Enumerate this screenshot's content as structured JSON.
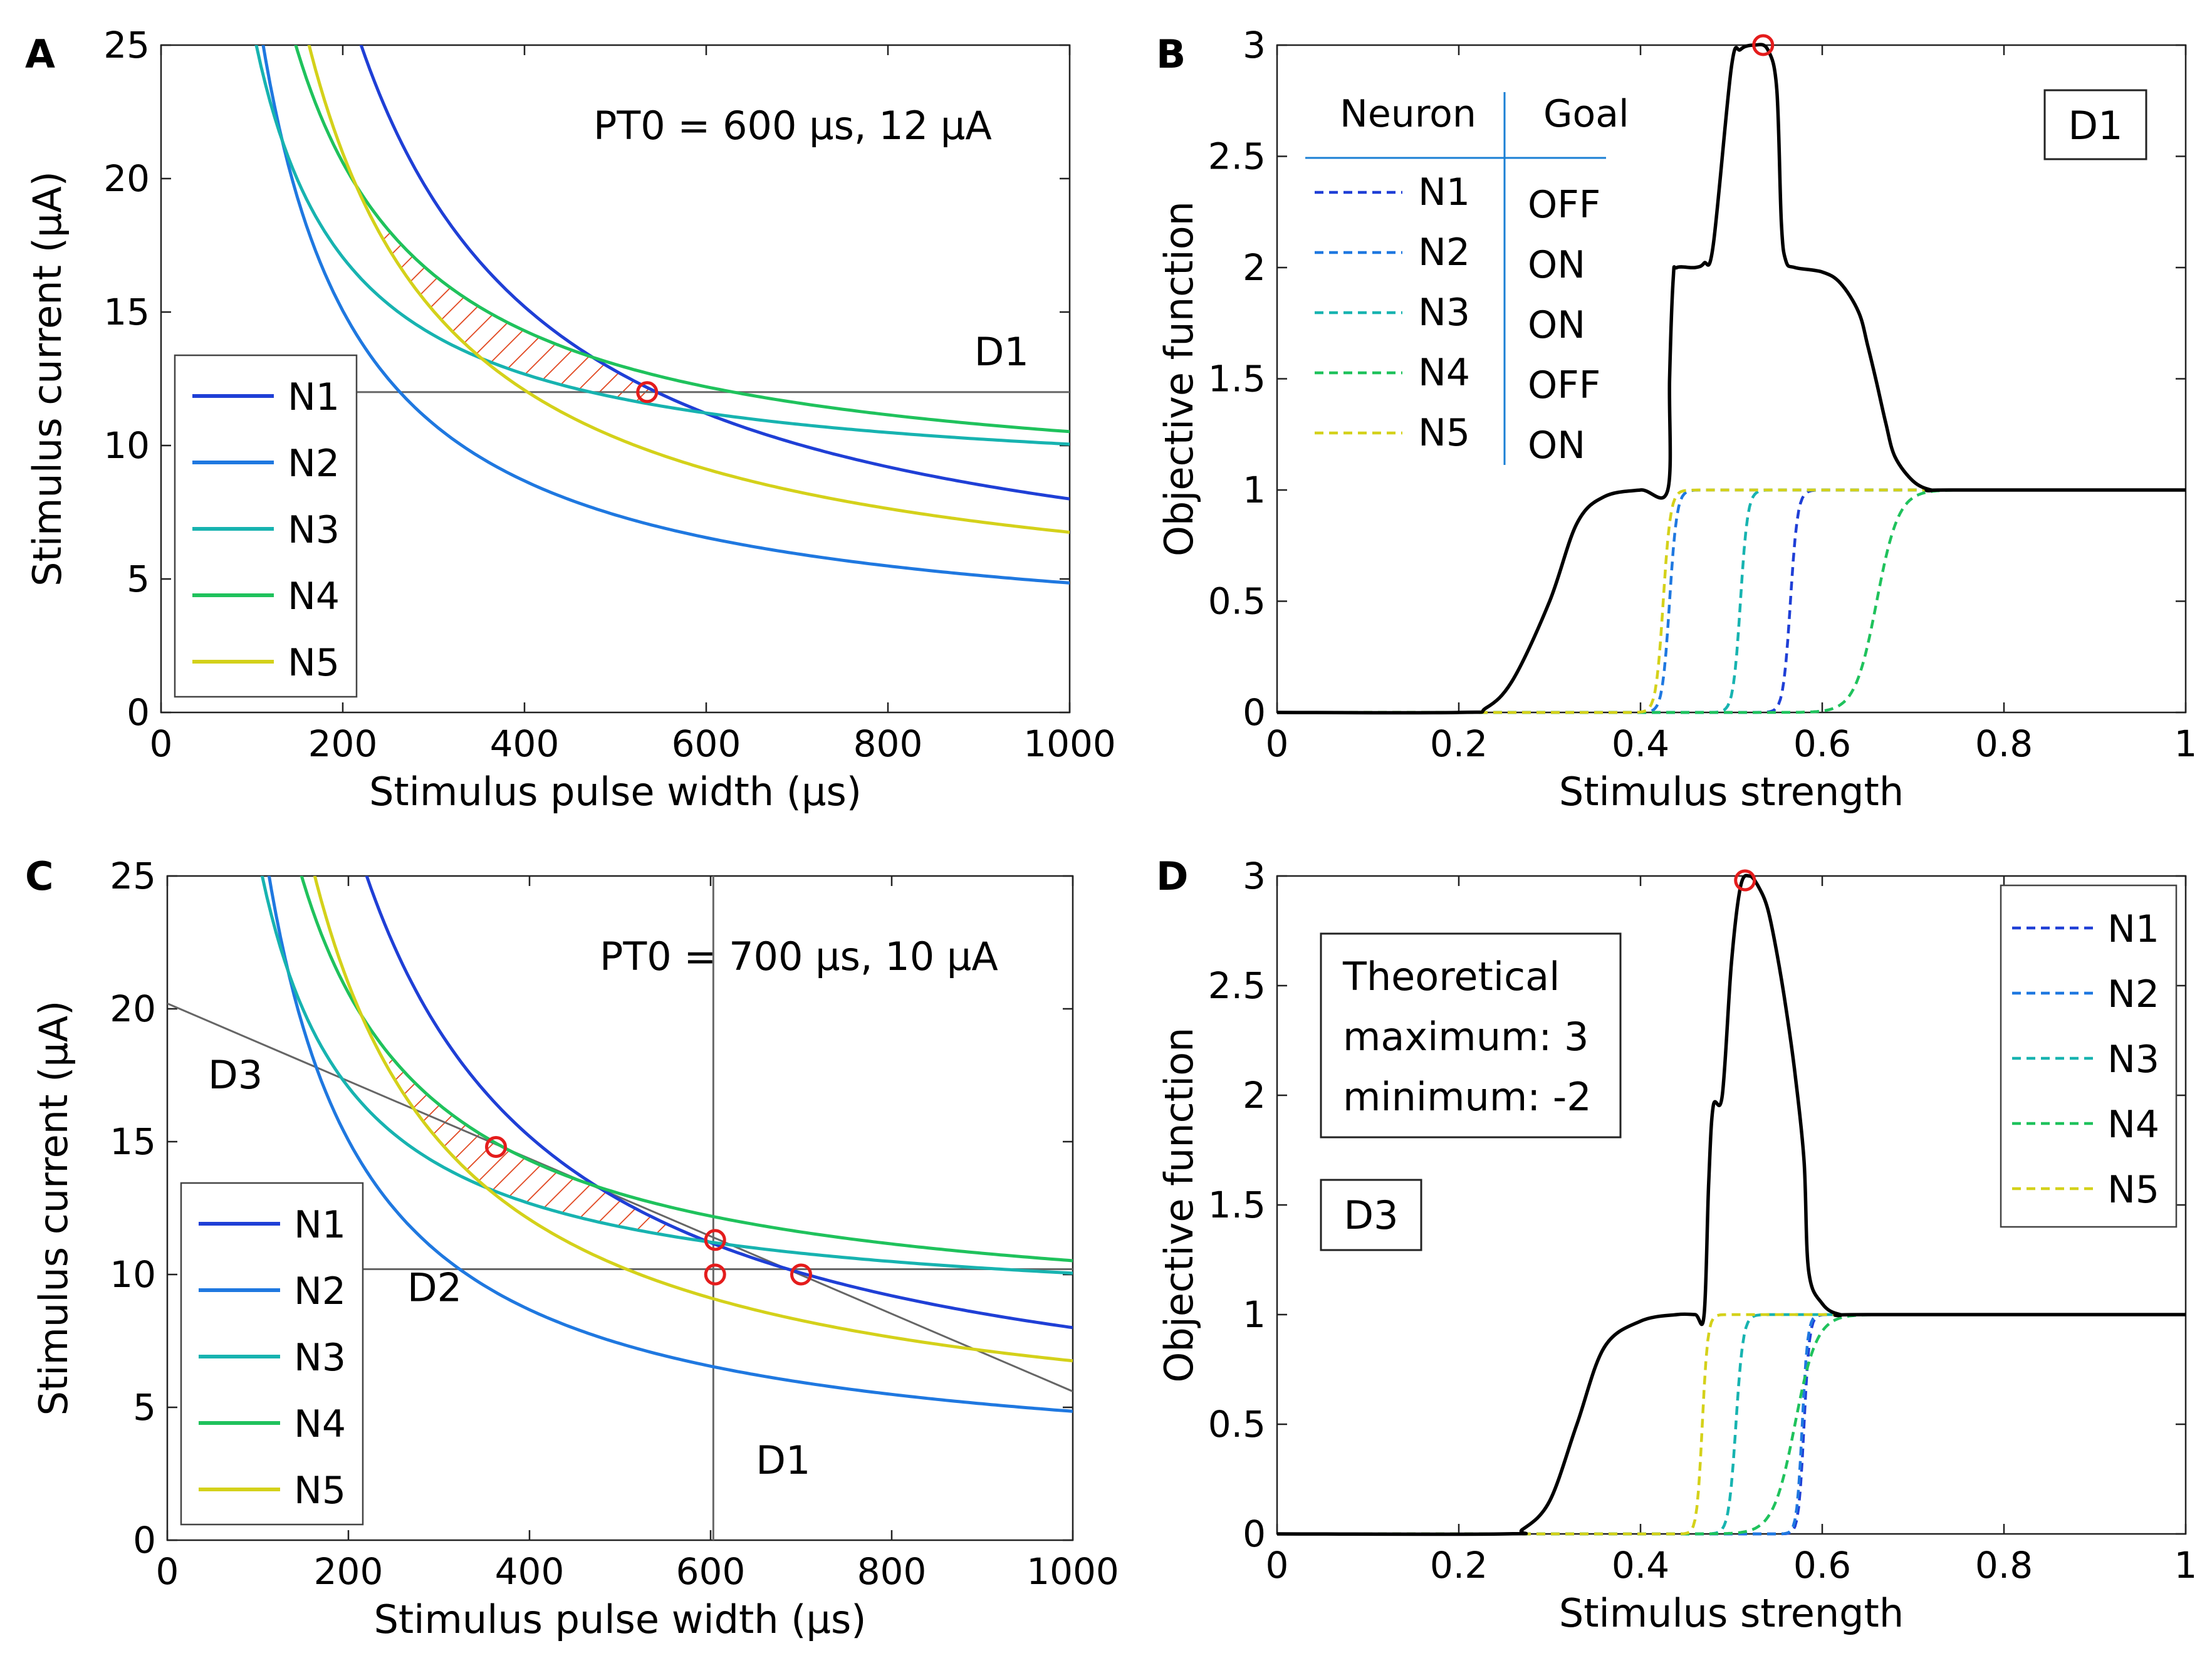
{
  "figure_labels": {
    "A": "A",
    "B": "B",
    "C": "C",
    "D": "D"
  },
  "chart_data": [
    {
      "id": "A",
      "type": "line",
      "xlabel": "Stimulus pulse width (µs)",
      "ylabel": "Stimulus current (µA)",
      "xlim": [
        0,
        1000
      ],
      "ylim": [
        0,
        25
      ],
      "xticks": [
        0,
        200,
        400,
        600,
        800,
        1000
      ],
      "yticks": [
        0,
        5,
        10,
        15,
        20,
        25
      ],
      "annotation": "PT0 = 600 µs, 12 µA",
      "legend_position": "bottom-left",
      "series": [
        {
          "name": "N1",
          "color": "#1f3fd6",
          "Q": 4800,
          "rheo": 3.2
        },
        {
          "name": "N2",
          "color": "#1f78e0",
          "Q": 2550,
          "rheo": 2.3
        },
        {
          "name": "N3",
          "color": "#17b3b0",
          "Q": 1750,
          "rheo": 8.3
        },
        {
          "name": "N4",
          "color": "#1fc25c",
          "Q": 2520,
          "rheo": 8.0
        },
        {
          "name": "N5",
          "color": "#d4d11a",
          "Q": 3550,
          "rheo": 3.2
        }
      ],
      "lines": [
        {
          "label": "D1",
          "type": "horizontal",
          "y": 12,
          "label_at": [
            895,
            13
          ]
        }
      ],
      "markers": [
        {
          "x": 535,
          "y": 12
        }
      ],
      "hatched_region": {
        "x_from": 245,
        "x_to": 545,
        "upper": [
          "N4",
          "N1"
        ],
        "lower": [
          "N5",
          "N3"
        ]
      }
    },
    {
      "id": "B",
      "type": "line",
      "xlabel": "Stimulus strength",
      "ylabel": "Objective function",
      "xlim": [
        0,
        1
      ],
      "ylim": [
        0,
        3
      ],
      "xticks": [
        0,
        0.2,
        0.4,
        0.6,
        0.8,
        1
      ],
      "yticks": [
        0,
        0.5,
        1,
        1.5,
        2,
        2.5,
        3
      ],
      "box_label": "D1",
      "legend_table": {
        "header_neuron": "Neuron",
        "header_goal": "Goal",
        "rows": [
          {
            "name": "N1",
            "goal": "OFF"
          },
          {
            "name": "N2",
            "goal": "ON"
          },
          {
            "name": "N3",
            "goal": "ON"
          },
          {
            "name": "N4",
            "goal": "OFF"
          },
          {
            "name": "N5",
            "goal": "ON"
          }
        ]
      },
      "series": [
        {
          "name": "N1",
          "color": "#1f3fd6",
          "center": 0.565,
          "width": 0.004
        },
        {
          "name": "N2",
          "color": "#1f78e0",
          "center": 0.432,
          "width": 0.004
        },
        {
          "name": "N3",
          "color": "#17b3b0",
          "center": 0.51,
          "width": 0.004
        },
        {
          "name": "N4",
          "color": "#1fc25c",
          "center": 0.66,
          "width": 0.012
        },
        {
          "name": "N5",
          "color": "#d4d11a",
          "center": 0.425,
          "width": 0.004
        }
      ],
      "objective": {
        "color": "#000000",
        "x": [
          0,
          0.2,
          0.23,
          0.26,
          0.3,
          0.33,
          0.36,
          0.4,
          0.43,
          0.432,
          0.436,
          0.44,
          0.46,
          0.47,
          0.48,
          0.5,
          0.51,
          0.525,
          0.54,
          0.55,
          0.555,
          0.56,
          0.57,
          0.6,
          0.62,
          0.64,
          0.65,
          0.66,
          0.67,
          0.68,
          0.7,
          0.72,
          0.74,
          1
        ],
        "y": [
          0,
          0,
          0.02,
          0.15,
          0.5,
          0.85,
          0.97,
          1.0,
          1.0,
          1.5,
          1.95,
          2.0,
          2.0,
          2.02,
          2.1,
          2.9,
          2.98,
          3.0,
          2.98,
          2.8,
          2.2,
          2.03,
          2.0,
          1.98,
          1.93,
          1.8,
          1.65,
          1.48,
          1.3,
          1.15,
          1.04,
          1.0,
          1.0,
          1.0
        ]
      },
      "markers": [
        {
          "x": 0.535,
          "y": 3.0
        }
      ]
    },
    {
      "id": "C",
      "type": "line",
      "xlabel": "Stimulus pulse width (µs)",
      "ylabel": "Stimulus current (µA)",
      "xlim": [
        0,
        1000
      ],
      "ylim": [
        0,
        25
      ],
      "xticks": [
        0,
        200,
        400,
        600,
        800,
        1000
      ],
      "yticks": [
        0,
        5,
        10,
        15,
        20,
        25
      ],
      "annotation": "PT0 = 700 µs, 10 µA",
      "legend_position": "bottom-left",
      "series": [
        {
          "name": "N1",
          "color": "#1f3fd6",
          "Q": 4800,
          "rheo": 3.2
        },
        {
          "name": "N2",
          "color": "#1f78e0",
          "Q": 2550,
          "rheo": 2.3
        },
        {
          "name": "N3",
          "color": "#17b3b0",
          "Q": 1750,
          "rheo": 8.3
        },
        {
          "name": "N4",
          "color": "#1fc25c",
          "Q": 2520,
          "rheo": 8.0
        },
        {
          "name": "N5",
          "color": "#d4d11a",
          "Q": 3550,
          "rheo": 3.2
        }
      ],
      "lines": [
        {
          "label": "D1",
          "type": "vertical",
          "x": 603,
          "label_at": [
            650,
            2.5
          ]
        },
        {
          "label": "D2",
          "type": "horizontal",
          "y": 10.2,
          "label_at": [
            265,
            9.0
          ]
        },
        {
          "label": "D3",
          "type": "segment",
          "from": [
            0,
            20.2
          ],
          "to": [
            1000,
            5.6
          ],
          "label_at": [
            45,
            17.0
          ]
        }
      ],
      "markers": [
        {
          "x": 363,
          "y": 14.8
        },
        {
          "x": 605,
          "y": 11.3
        },
        {
          "x": 605,
          "y": 10.0
        },
        {
          "x": 700,
          "y": 10.0
        }
      ],
      "hatched_region": {
        "x_from": 245,
        "x_to": 560,
        "upper": [
          "N4",
          "N1"
        ],
        "lower": [
          "N5",
          "N3"
        ]
      }
    },
    {
      "id": "D",
      "type": "line",
      "xlabel": "Stimulus strength",
      "ylabel": "Objective function",
      "xlim": [
        0,
        1
      ],
      "ylim": [
        0,
        3
      ],
      "xticks": [
        0,
        0.2,
        0.4,
        0.6,
        0.8,
        1
      ],
      "yticks": [
        0,
        0.5,
        1,
        1.5,
        2,
        2.5,
        3
      ],
      "box_label": "D3",
      "note_lines": [
        "Theoretical",
        "maximum: 3",
        "minimum: -2"
      ],
      "legend_position": "top-right",
      "series": [
        {
          "name": "N1",
          "color": "#1f3fd6",
          "center": 0.58,
          "width": 0.003
        },
        {
          "name": "N2",
          "color": "#1f78e0",
          "center": 0.578,
          "width": 0.003
        },
        {
          "name": "N3",
          "color": "#17b3b0",
          "center": 0.505,
          "width": 0.004
        },
        {
          "name": "N4",
          "color": "#1fc25c",
          "center": 0.57,
          "width": 0.012
        },
        {
          "name": "N5",
          "color": "#d4d11a",
          "center": 0.468,
          "width": 0.003
        }
      ],
      "objective": {
        "color": "#000000",
        "x": [
          0,
          0.25,
          0.27,
          0.3,
          0.33,
          0.36,
          0.4,
          0.44,
          0.46,
          0.47,
          0.475,
          0.48,
          0.49,
          0.5,
          0.51,
          0.52,
          0.53,
          0.54,
          0.55,
          0.56,
          0.57,
          0.58,
          0.585,
          0.6,
          0.62,
          0.65,
          1
        ],
        "y": [
          0,
          0,
          0.02,
          0.15,
          0.5,
          0.85,
          0.97,
          1.0,
          1.0,
          1.0,
          1.6,
          1.95,
          2.0,
          2.6,
          2.95,
          3.0,
          2.95,
          2.85,
          2.65,
          2.4,
          2.1,
          1.7,
          1.2,
          1.05,
          1.0,
          1.0,
          1.0
        ]
      },
      "markers": [
        {
          "x": 0.515,
          "y": 2.98
        }
      ]
    }
  ]
}
